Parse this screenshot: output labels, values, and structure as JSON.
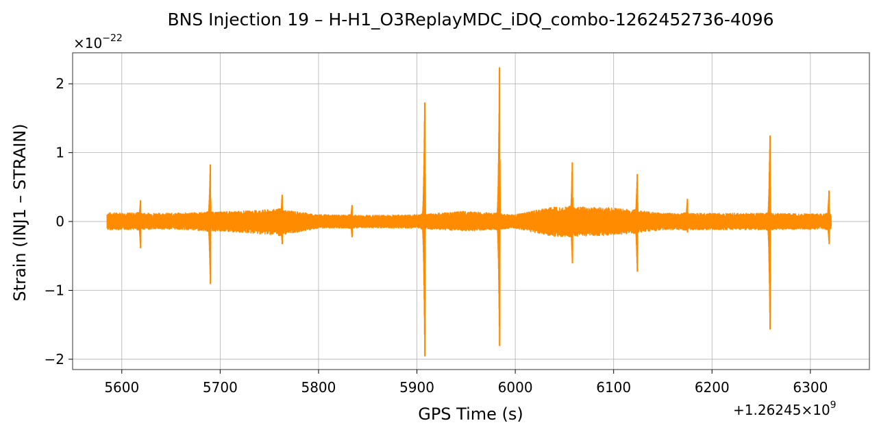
{
  "chart_data": {
    "type": "line",
    "title": "BNS Injection 19 – H-H1_O3ReplayMDC_iDQ_combo-1262452736-4096",
    "xlabel": "GPS Time (s)",
    "ylabel": "Strain (INJ1 – STRAIN)",
    "x_offset_label": "+1.26245×10",
    "x_offset_exponent": "9",
    "y_multiplier_label": "×10",
    "y_multiplier_exponent": "−22",
    "xlim": [
      5550,
      6360
    ],
    "ylim": [
      -2.15,
      2.45
    ],
    "x_ticks": [
      5600,
      5700,
      5800,
      5900,
      6000,
      6100,
      6200,
      6300
    ],
    "x_tick_labels": [
      "5600",
      "5700",
      "5800",
      "5900",
      "6000",
      "6100",
      "6200",
      "6300"
    ],
    "y_ticks": [
      -2,
      -1,
      0,
      1,
      2
    ],
    "y_tick_labels": [
      "−2",
      "−1",
      "0",
      "1",
      "2"
    ],
    "grid": true,
    "line_color": "#ff8c00",
    "series": [
      {
        "x_range": [
          5585,
          6321
        ],
        "envelope": [
          {
            "x": 5585,
            "upper": 0.13,
            "lower": -0.12
          },
          {
            "x": 5650,
            "upper": 0.12,
            "lower": -0.11
          },
          {
            "x": 5720,
            "upper": 0.15,
            "lower": -0.16
          },
          {
            "x": 5760,
            "upper": 0.18,
            "lower": -0.2
          },
          {
            "x": 5800,
            "upper": 0.1,
            "lower": -0.1
          },
          {
            "x": 5850,
            "upper": 0.09,
            "lower": -0.09
          },
          {
            "x": 5900,
            "upper": 0.1,
            "lower": -0.1
          },
          {
            "x": 5950,
            "upper": 0.15,
            "lower": -0.14
          },
          {
            "x": 6000,
            "upper": 0.1,
            "lower": -0.1
          },
          {
            "x": 6040,
            "upper": 0.22,
            "lower": -0.22
          },
          {
            "x": 6100,
            "upper": 0.2,
            "lower": -0.2
          },
          {
            "x": 6150,
            "upper": 0.12,
            "lower": -0.12
          },
          {
            "x": 6200,
            "upper": 0.12,
            "lower": -0.12
          },
          {
            "x": 6250,
            "upper": 0.12,
            "lower": -0.12
          },
          {
            "x": 6321,
            "upper": 0.11,
            "lower": -0.11
          }
        ],
        "spikes": [
          {
            "x": 5619,
            "max": 0.3,
            "min": -0.38
          },
          {
            "x": 5690,
            "max": 0.82,
            "min": -0.9
          },
          {
            "x": 5763,
            "max": 0.38,
            "min": -0.32
          },
          {
            "x": 5834,
            "max": 0.23,
            "min": -0.22
          },
          {
            "x": 5908,
            "max": 1.72,
            "min": -1.95
          },
          {
            "x": 5984,
            "max": 2.23,
            "min": -1.8
          },
          {
            "x": 6058,
            "max": 0.85,
            "min": -0.6
          },
          {
            "x": 6124,
            "max": 0.68,
            "min": -0.72
          },
          {
            "x": 6175,
            "max": 0.32,
            "min": -0.15
          },
          {
            "x": 6259,
            "max": 1.24,
            "min": -1.56
          },
          {
            "x": 6319,
            "max": 0.44,
            "min": -0.32
          }
        ]
      }
    ]
  }
}
